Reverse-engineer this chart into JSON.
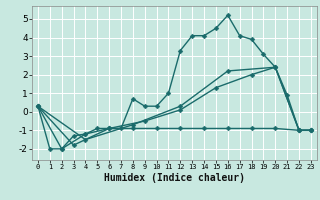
{
  "xlabel": "Humidex (Indice chaleur)",
  "bg_color": "#c8e8e0",
  "grid_color": "#ffffff",
  "line_color": "#1a6b6b",
  "marker": "D",
  "markersize": 2.5,
  "linewidth": 1.0,
  "series1": [
    [
      0,
      0.3
    ],
    [
      1,
      -2.0
    ],
    [
      2,
      -2.0
    ],
    [
      3,
      -1.3
    ],
    [
      4,
      -1.2
    ],
    [
      5,
      -0.9
    ],
    [
      6,
      -0.9
    ],
    [
      7,
      -0.9
    ],
    [
      8,
      0.7
    ],
    [
      9,
      0.3
    ],
    [
      10,
      0.3
    ],
    [
      11,
      1.0
    ],
    [
      12,
      3.3
    ],
    [
      13,
      4.1
    ],
    [
      14,
      4.1
    ],
    [
      15,
      4.5
    ],
    [
      16,
      5.2
    ],
    [
      17,
      4.1
    ],
    [
      18,
      3.9
    ],
    [
      19,
      3.1
    ],
    [
      20,
      2.4
    ],
    [
      21,
      0.9
    ],
    [
      22,
      -1.0
    ],
    [
      23,
      -1.0
    ]
  ],
  "series2": [
    [
      0,
      0.3
    ],
    [
      2,
      -2.0
    ],
    [
      4,
      -1.2
    ],
    [
      6,
      -0.9
    ],
    [
      8,
      -0.9
    ],
    [
      10,
      -0.9
    ],
    [
      12,
      -0.9
    ],
    [
      14,
      -0.9
    ],
    [
      16,
      -0.9
    ],
    [
      18,
      -0.9
    ],
    [
      20,
      -0.9
    ],
    [
      22,
      -1.0
    ],
    [
      23,
      -1.0
    ]
  ],
  "series3": [
    [
      0,
      0.3
    ],
    [
      3,
      -1.8
    ],
    [
      6,
      -0.9
    ],
    [
      9,
      -0.5
    ],
    [
      12,
      0.1
    ],
    [
      15,
      1.3
    ],
    [
      18,
      2.0
    ],
    [
      20,
      2.4
    ],
    [
      22,
      -1.0
    ],
    [
      23,
      -1.0
    ]
  ],
  "series4": [
    [
      0,
      0.3
    ],
    [
      4,
      -1.5
    ],
    [
      8,
      -0.7
    ],
    [
      12,
      0.3
    ],
    [
      16,
      2.2
    ],
    [
      20,
      2.4
    ],
    [
      22,
      -1.0
    ],
    [
      23,
      -1.0
    ]
  ],
  "xlim": [
    -0.5,
    23.5
  ],
  "ylim": [
    -2.6,
    5.7
  ],
  "xticks": [
    0,
    1,
    2,
    3,
    4,
    5,
    6,
    7,
    8,
    9,
    10,
    11,
    12,
    13,
    14,
    15,
    16,
    17,
    18,
    19,
    20,
    21,
    22,
    23
  ],
  "yticks": [
    -2,
    -1,
    0,
    1,
    2,
    3,
    4,
    5
  ]
}
